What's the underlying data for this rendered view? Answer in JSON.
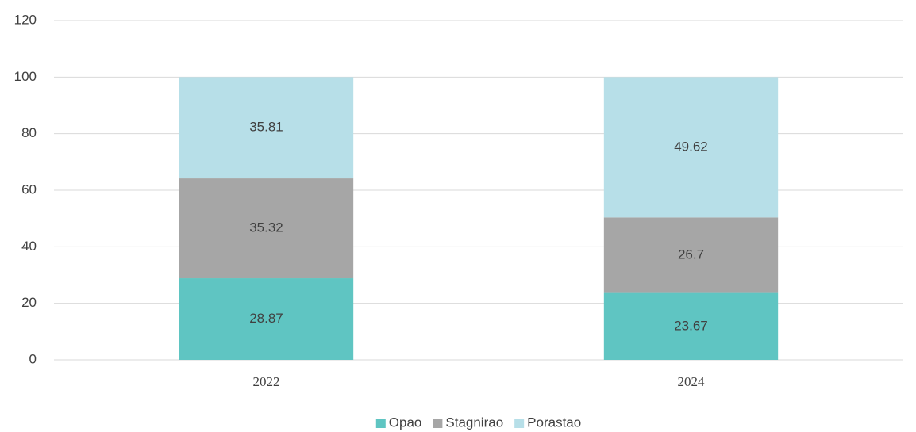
{
  "chart_data": {
    "type": "stacked_bar",
    "categories": [
      "2022",
      "2024"
    ],
    "series": [
      {
        "name": "Opao",
        "color": "#5fc5c2",
        "values": [
          28.87,
          23.67
        ]
      },
      {
        "name": "Stagnirao",
        "color": "#a6a6a6",
        "values": [
          35.32,
          26.7
        ]
      },
      {
        "name": "Porastao",
        "color": "#b7dfe8",
        "values": [
          35.81,
          49.62
        ]
      }
    ],
    "ylim": [
      0,
      120
    ],
    "yticks": [
      0,
      20,
      40,
      60,
      80,
      100,
      120
    ],
    "grid": true,
    "legend": "bottom"
  }
}
